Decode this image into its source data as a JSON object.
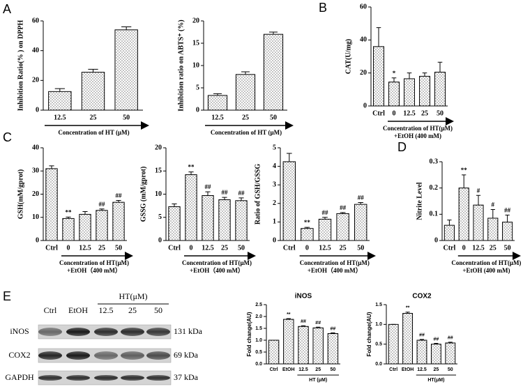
{
  "panel_labels": [
    "A",
    "B",
    "C",
    "D",
    "E"
  ],
  "chart_data": [
    {
      "type": "bar",
      "y_label": "Inhibition Ratio(% ) on DPPH",
      "x_label": [
        "Concentration of HT (μM)"
      ],
      "categories": [
        "12.5",
        "25",
        "50"
      ],
      "values": [
        12.5,
        25.5,
        54
      ],
      "errors": [
        2,
        2,
        2
      ],
      "ylim": [
        0,
        60
      ],
      "yticks": [
        0,
        20,
        40,
        60
      ],
      "bar_fill": "dotted"
    },
    {
      "type": "bar",
      "y_label": "Inhibition ratio on ABTS⁺ (%)",
      "x_label": [
        "Concentration of HT (μM)"
      ],
      "categories": [
        "12.5",
        "25",
        "50"
      ],
      "values": [
        3.3,
        8,
        17
      ],
      "errors": [
        0.4,
        0.6,
        0.5
      ],
      "ylim": [
        0,
        20
      ],
      "yticks": [
        0,
        5,
        10,
        15,
        20
      ],
      "bar_fill": "dotted"
    },
    {
      "type": "bar",
      "y_label": "CAT(U/mg)",
      "x_label": [
        "Concentration of HT(μM)",
        "+EtOH (400 mM)"
      ],
      "categories": [
        "Ctrl",
        "0",
        "12.5",
        "25",
        "50"
      ],
      "values": [
        36,
        14.5,
        16.5,
        18,
        20.5
      ],
      "errors": [
        11.5,
        2.5,
        3.5,
        2,
        6
      ],
      "annotations": [
        null,
        "*",
        null,
        null,
        null
      ],
      "ylim": [
        0,
        60
      ],
      "yticks": [
        0,
        20,
        40,
        60
      ],
      "bar_fill": "dotted"
    },
    {
      "type": "bar",
      "y_label": "GSH(mM/gprot)",
      "x_label": [
        "Concentration of HT(μM)",
        "+EtOH（400 mM）"
      ],
      "categories": [
        "Ctrl",
        "0",
        "12.5",
        "25",
        "50"
      ],
      "values": [
        31,
        9.5,
        11.3,
        13,
        16.5
      ],
      "errors": [
        1.2,
        0.6,
        1.2,
        0.6,
        0.8
      ],
      "annotations": [
        null,
        "**",
        null,
        "##",
        "##"
      ],
      "ylim": [
        0,
        40
      ],
      "yticks": [
        0,
        10,
        20,
        30,
        40
      ],
      "bar_fill": "dotted"
    },
    {
      "type": "bar",
      "y_label": "GSSG (mM/gprot)",
      "x_label": [
        "Concentration of HT(μM)",
        "+EtOH（400 mM）"
      ],
      "categories": [
        "Ctrl",
        "0",
        "12.5",
        "25",
        "50"
      ],
      "values": [
        7.3,
        14.2,
        9.7,
        8.8,
        8.6
      ],
      "errors": [
        0.6,
        0.6,
        0.8,
        0.5,
        0.6
      ],
      "annotations": [
        null,
        "**",
        "##",
        "##",
        "##"
      ],
      "ylim": [
        0,
        20
      ],
      "yticks": [
        0,
        5,
        10,
        15,
        20
      ],
      "bar_fill": "dotted"
    },
    {
      "type": "bar",
      "y_label": "Ratio of GSH/GSSG",
      "x_label": [
        "Concentration of HT(μM)",
        "+EtOH（400 mM）"
      ],
      "categories": [
        "Ctrl",
        "0",
        "12.5",
        "25",
        "50"
      ],
      "values": [
        4.25,
        0.65,
        1.15,
        1.45,
        1.95
      ],
      "errors": [
        0.45,
        0.06,
        0.1,
        0.06,
        0.1
      ],
      "annotations": [
        null,
        "**",
        "##",
        "##",
        "##"
      ],
      "ylim": [
        0,
        5
      ],
      "yticks": [
        0,
        1,
        2,
        3,
        4,
        5
      ],
      "bar_fill": "dotted"
    },
    {
      "type": "bar",
      "y_label": "Nitrite Level",
      "x_label": [
        "Concentration of HT(μM)",
        "+EtOH (400 mM)"
      ],
      "categories": [
        "Ctrl",
        "0",
        "12.5",
        "25",
        "50"
      ],
      "values": [
        0.058,
        0.2,
        0.135,
        0.085,
        0.07
      ],
      "errors": [
        0.02,
        0.05,
        0.037,
        0.033,
        0.027
      ],
      "annotations": [
        null,
        "**",
        "#",
        "#",
        "##"
      ],
      "ylim": [
        0,
        0.3
      ],
      "yticks": [
        0,
        0.1,
        0.2,
        0.3
      ],
      "bar_fill": "dotted"
    },
    {
      "type": "bar",
      "title": "iNOS",
      "y_label": "Fold change(AU)",
      "group_label": "HT (μM)",
      "categories": [
        "Ctrl",
        "EtOH",
        "12.5",
        "25",
        "50"
      ],
      "values": [
        1.0,
        1.88,
        1.58,
        1.52,
        1.28
      ],
      "errors": [
        0,
        0.03,
        0.03,
        0.03,
        0.03
      ],
      "annotations": [
        null,
        "**",
        "##",
        "##",
        "##"
      ],
      "ylim": [
        0,
        2.5
      ],
      "yticks": [
        {
          "value": 0,
          "label": "0.0"
        },
        {
          "value": 0.5,
          "label": "0.5"
        },
        {
          "value": 1,
          "label": "1.0"
        },
        {
          "value": 1.5,
          "label": "1.5"
        },
        {
          "value": 2,
          "label": "2.0"
        },
        {
          "value": 2.5,
          "label": "2.5"
        }
      ],
      "bar_fill": "dotted"
    },
    {
      "type": "bar",
      "title": "COX2",
      "y_label": "Fold change(AU)",
      "group_label": "HT(μM)",
      "categories": [
        "Ctrl",
        "EtOH",
        "12.5",
        "25",
        "50"
      ],
      "values": [
        1.0,
        1.28,
        0.6,
        0.5,
        0.53
      ],
      "errors": [
        0,
        0.03,
        0.02,
        0.02,
        0.02
      ],
      "annotations": [
        null,
        "**",
        "##",
        "##",
        "##"
      ],
      "ylim": [
        0,
        1.5
      ],
      "yticks": [
        {
          "value": 0,
          "label": "0.0"
        },
        {
          "value": 0.5,
          "label": "0.5"
        },
        {
          "value": 1,
          "label": "1.0"
        },
        {
          "value": 1.5,
          "label": "1.5"
        }
      ],
      "bar_fill": "dotted"
    }
  ],
  "western_blot": {
    "lanes": [
      "Ctrl",
      "EtOH",
      "12.5",
      "25",
      "50"
    ],
    "group_label": "HT(μM)",
    "rows": [
      {
        "protein": "iNOS",
        "size": "131 kDa"
      },
      {
        "protein": "COX2",
        "size": "69 kDa"
      },
      {
        "protein": "GAPDH",
        "size": "37 kDa"
      }
    ]
  }
}
